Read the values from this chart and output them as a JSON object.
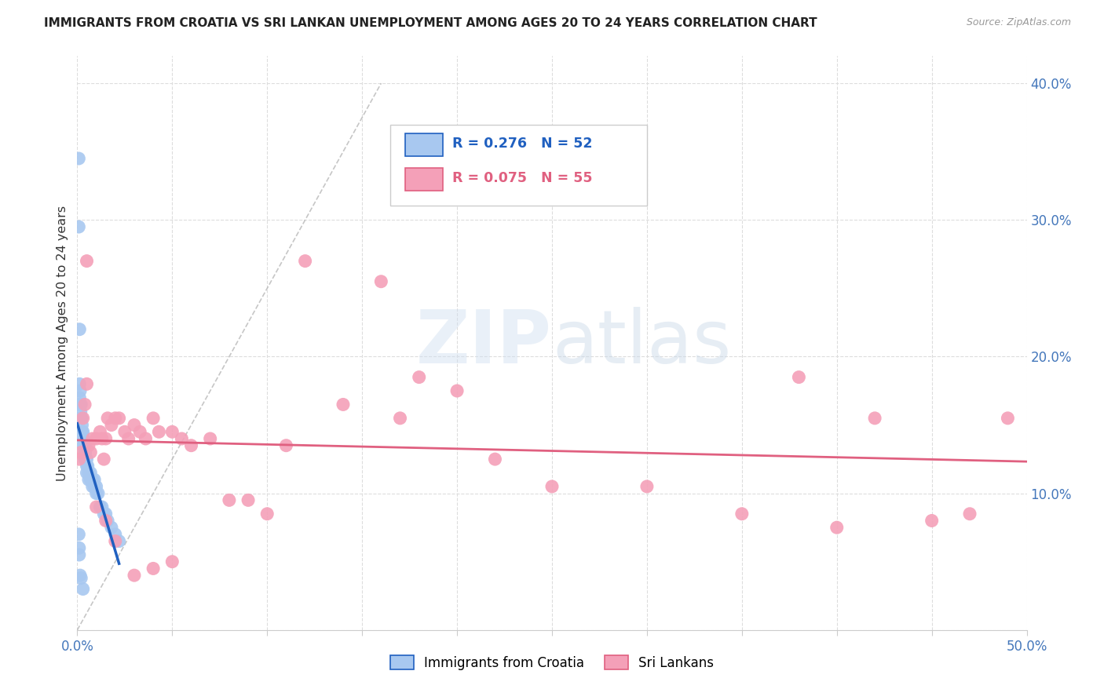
{
  "title": "IMMIGRANTS FROM CROATIA VS SRI LANKAN UNEMPLOYMENT AMONG AGES 20 TO 24 YEARS CORRELATION CHART",
  "source": "Source: ZipAtlas.com",
  "ylabel": "Unemployment Among Ages 20 to 24 years",
  "xlim": [
    0.0,
    0.5
  ],
  "ylim": [
    0.0,
    0.42
  ],
  "croatia_R": 0.276,
  "croatia_N": 52,
  "srilanka_R": 0.075,
  "srilanka_N": 55,
  "croatia_color": "#a8c8f0",
  "srilanka_color": "#f4a0b8",
  "croatia_line_color": "#2060c0",
  "srilanka_line_color": "#e06080",
  "watermark_zip": "ZIP",
  "watermark_atlas": "atlas",
  "background_color": "#ffffff",
  "croatia_x": [
    0.0008,
    0.0008,
    0.0012,
    0.0012,
    0.0012,
    0.0015,
    0.0015,
    0.0018,
    0.002,
    0.002,
    0.0022,
    0.0025,
    0.0025,
    0.003,
    0.003,
    0.003,
    0.0032,
    0.0035,
    0.004,
    0.004,
    0.004,
    0.0042,
    0.0045,
    0.005,
    0.005,
    0.005,
    0.0055,
    0.006,
    0.006,
    0.007,
    0.007,
    0.008,
    0.008,
    0.009,
    0.009,
    0.01,
    0.01,
    0.011,
    0.012,
    0.013,
    0.014,
    0.015,
    0.016,
    0.018,
    0.02,
    0.022,
    0.0008,
    0.001,
    0.001,
    0.0015,
    0.002,
    0.003
  ],
  "croatia_y": [
    0.345,
    0.295,
    0.22,
    0.18,
    0.17,
    0.175,
    0.165,
    0.16,
    0.165,
    0.155,
    0.155,
    0.15,
    0.145,
    0.145,
    0.14,
    0.135,
    0.14,
    0.135,
    0.135,
    0.13,
    0.125,
    0.13,
    0.125,
    0.125,
    0.12,
    0.115,
    0.12,
    0.115,
    0.11,
    0.115,
    0.11,
    0.11,
    0.105,
    0.11,
    0.105,
    0.105,
    0.1,
    0.1,
    0.09,
    0.09,
    0.085,
    0.085,
    0.08,
    0.075,
    0.07,
    0.065,
    0.07,
    0.06,
    0.055,
    0.04,
    0.038,
    0.03
  ],
  "srilanka_x": [
    0.001,
    0.002,
    0.003,
    0.004,
    0.005,
    0.006,
    0.007,
    0.008,
    0.01,
    0.012,
    0.013,
    0.014,
    0.015,
    0.016,
    0.018,
    0.02,
    0.022,
    0.025,
    0.027,
    0.03,
    0.033,
    0.036,
    0.04,
    0.043,
    0.05,
    0.055,
    0.06,
    0.07,
    0.08,
    0.09,
    0.1,
    0.11,
    0.12,
    0.14,
    0.16,
    0.17,
    0.18,
    0.2,
    0.22,
    0.25,
    0.3,
    0.35,
    0.38,
    0.4,
    0.42,
    0.45,
    0.47,
    0.49,
    0.005,
    0.01,
    0.015,
    0.02,
    0.03,
    0.04,
    0.05
  ],
  "srilanka_y": [
    0.125,
    0.13,
    0.155,
    0.165,
    0.18,
    0.135,
    0.13,
    0.14,
    0.14,
    0.145,
    0.14,
    0.125,
    0.14,
    0.155,
    0.15,
    0.155,
    0.155,
    0.145,
    0.14,
    0.15,
    0.145,
    0.14,
    0.155,
    0.145,
    0.145,
    0.14,
    0.135,
    0.14,
    0.095,
    0.095,
    0.085,
    0.135,
    0.27,
    0.165,
    0.255,
    0.155,
    0.185,
    0.175,
    0.125,
    0.105,
    0.105,
    0.085,
    0.185,
    0.075,
    0.155,
    0.08,
    0.085,
    0.155,
    0.27,
    0.09,
    0.08,
    0.065,
    0.04,
    0.045,
    0.05
  ]
}
